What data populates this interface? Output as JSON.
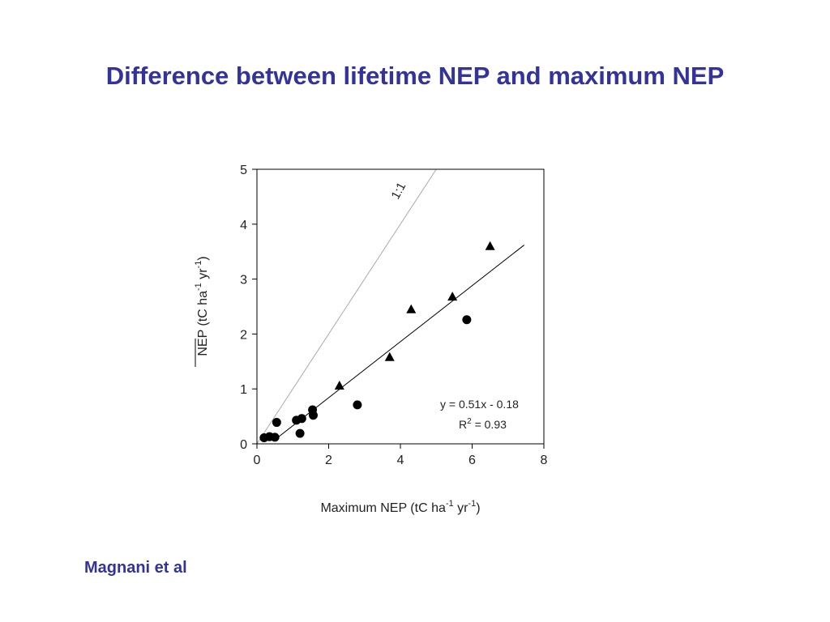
{
  "slide": {
    "title": "Difference between lifetime NEP and maximum NEP",
    "citation": "Magnani et al"
  },
  "chart_data": {
    "type": "scatter",
    "xlabel": "Maximum NEP (tC ha-1 yr-1)",
    "ylabel": "NEP (tC ha-1 yr-1)",
    "xlim": [
      0,
      8
    ],
    "ylim": [
      0,
      5
    ],
    "xticks": [
      "0",
      "2",
      "4",
      "6",
      "8"
    ],
    "yticks": [
      "0",
      "1",
      "2",
      "3",
      "4",
      "5"
    ],
    "series": [
      {
        "marker": "circle",
        "color": "#000000",
        "points": [
          [
            0.2,
            0.11
          ],
          [
            0.35,
            0.13
          ],
          [
            0.5,
            0.12
          ],
          [
            0.55,
            0.39
          ],
          [
            1.1,
            0.43
          ],
          [
            1.2,
            0.19
          ],
          [
            1.25,
            0.46
          ],
          [
            1.55,
            0.62
          ],
          [
            1.57,
            0.52
          ],
          [
            2.8,
            0.71
          ],
          [
            5.85,
            2.26
          ]
        ]
      },
      {
        "marker": "triangle",
        "color": "#000000",
        "points": [
          [
            2.3,
            1.05
          ],
          [
            3.7,
            1.57
          ],
          [
            4.3,
            2.44
          ],
          [
            5.45,
            2.67
          ],
          [
            6.5,
            3.59
          ]
        ]
      }
    ],
    "lines": [
      {
        "name": "1:1",
        "x": [
          0,
          5
        ],
        "y": [
          0,
          5
        ],
        "color": "#aaaaaa"
      },
      {
        "name": "regression",
        "x": [
          0.55,
          7.45
        ],
        "y": [
          0.1,
          3.62
        ],
        "color": "#000000"
      }
    ],
    "annotations": {
      "one_to_one": "1:1",
      "equation": "y = 0.51x - 0.18",
      "r2": "R2 = 0.93"
    },
    "grid": false
  }
}
